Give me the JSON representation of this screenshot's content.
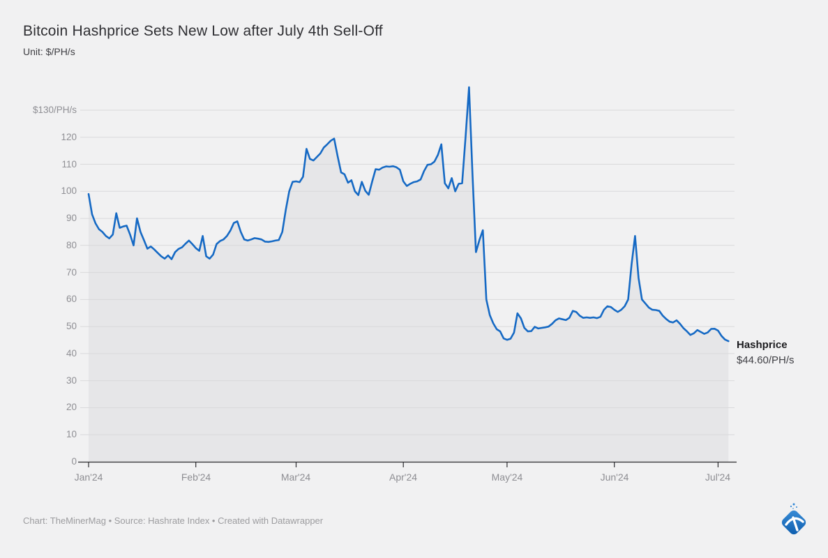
{
  "header": {
    "title": "Bitcoin Hashprice Sets New Low after July 4th Sell-Off",
    "subtitle": "Unit: $/PH/s"
  },
  "annotation": {
    "series_label": "Hashprice",
    "value_label": "$44.60/PH/s"
  },
  "footer": {
    "credit": "Chart: TheMinerMag • Source: Hashrate Index • Created with Datawrapper"
  },
  "colors": {
    "background": "#f1f1f2",
    "line": "#1569c4",
    "area_fill": "#e6e6e8",
    "gridline": "#d9d9db",
    "axis": "#2b2b2e",
    "axis_label": "#8f8f94",
    "logo_blue_light": "#3b8ed8",
    "logo_blue_dark": "#0b5cad"
  },
  "chart_data": {
    "type": "area",
    "title": "Bitcoin Hashprice Sets New Low after July 4th Sell-Off",
    "unit": "$/PH/s",
    "xlabel": "",
    "ylabel": "$/PH/s",
    "ylim": [
      0,
      130
    ],
    "grid": true,
    "legend_position": "right-end-annotation",
    "start_date": "2024-01-01",
    "end_date": "2024-07-04",
    "frequency": "daily",
    "x_ticks": [
      {
        "label": "Jan'24",
        "day_offset": 0
      },
      {
        "label": "Feb'24",
        "day_offset": 31
      },
      {
        "label": "Mar'24",
        "day_offset": 60
      },
      {
        "label": "Apr'24",
        "day_offset": 91
      },
      {
        "label": "May'24",
        "day_offset": 121
      },
      {
        "label": "Jun'24",
        "day_offset": 152
      },
      {
        "label": "Jul'24",
        "day_offset": 182
      }
    ],
    "y_ticks": [
      {
        "value": 130,
        "label": "$130/PH/s"
      },
      {
        "value": 120,
        "label": "120"
      },
      {
        "value": 110,
        "label": "110"
      },
      {
        "value": 100,
        "label": "100"
      },
      {
        "value": 90,
        "label": "90"
      },
      {
        "value": 80,
        "label": "80"
      },
      {
        "value": 70,
        "label": "70"
      },
      {
        "value": 60,
        "label": "60"
      },
      {
        "value": 50,
        "label": "50"
      },
      {
        "value": 40,
        "label": "40"
      },
      {
        "value": 30,
        "label": "30"
      },
      {
        "value": 20,
        "label": "20"
      },
      {
        "value": 10,
        "label": "10"
      },
      {
        "value": 0,
        "label": "0"
      }
    ],
    "series": [
      {
        "name": "Hashprice",
        "last_value": 44.6,
        "values": [
          99.0,
          91.5,
          88.2,
          86.0,
          85.0,
          83.5,
          82.6,
          84.0,
          91.9,
          86.5,
          87.0,
          87.3,
          84.0,
          80.0,
          90.0,
          85.0,
          82.0,
          78.8,
          79.6,
          78.5,
          77.2,
          76.0,
          75.1,
          76.3,
          74.9,
          77.5,
          78.7,
          79.3,
          80.6,
          81.8,
          80.5,
          79.0,
          78.0,
          83.5,
          76.0,
          75.1,
          76.6,
          80.5,
          81.6,
          82.2,
          83.5,
          85.5,
          88.3,
          88.9,
          85.0,
          82.2,
          81.8,
          82.2,
          82.7,
          82.5,
          82.2,
          81.4,
          81.3,
          81.5,
          81.8,
          82.0,
          85.0,
          93.0,
          100.0,
          103.5,
          103.7,
          103.4,
          105.4,
          115.7,
          112.0,
          111.4,
          112.7,
          114.0,
          116.2,
          117.4,
          118.7,
          119.5,
          113.0,
          107.0,
          106.3,
          103.2,
          104.1,
          100.0,
          98.6,
          103.5,
          100.2,
          98.7,
          103.7,
          108.2,
          108.0,
          108.8,
          109.2,
          109.1,
          109.3,
          108.9,
          108.0,
          103.7,
          102.0,
          102.8,
          103.4,
          103.7,
          104.4,
          107.5,
          109.8,
          110.0,
          111.0,
          113.5,
          117.4,
          103.0,
          101.1,
          104.9,
          100.0,
          102.8,
          103.0,
          120.0,
          138.5,
          106.0,
          77.5,
          82.0,
          85.6,
          60.0,
          54.2,
          51.2,
          49.0,
          48.2,
          45.6,
          45.1,
          45.5,
          47.8,
          54.9,
          53.0,
          49.5,
          48.2,
          48.3,
          49.9,
          49.3,
          49.5,
          49.7,
          50.0,
          51.0,
          52.3,
          53.0,
          52.7,
          52.4,
          53.2,
          55.8,
          55.4,
          54.0,
          53.2,
          53.4,
          53.2,
          53.4,
          53.1,
          53.6,
          56.2,
          57.5,
          57.2,
          56.2,
          55.4,
          56.2,
          57.5,
          60.0,
          73.0,
          83.5,
          68.0,
          60.0,
          58.5,
          57.0,
          56.2,
          56.1,
          55.8,
          54.0,
          52.8,
          51.8,
          51.5,
          52.3,
          51.0,
          49.4,
          48.2,
          46.9,
          47.5,
          48.7,
          48.0,
          47.3,
          47.8,
          49.1,
          49.2,
          48.5,
          46.5,
          45.2,
          44.6
        ]
      }
    ]
  }
}
